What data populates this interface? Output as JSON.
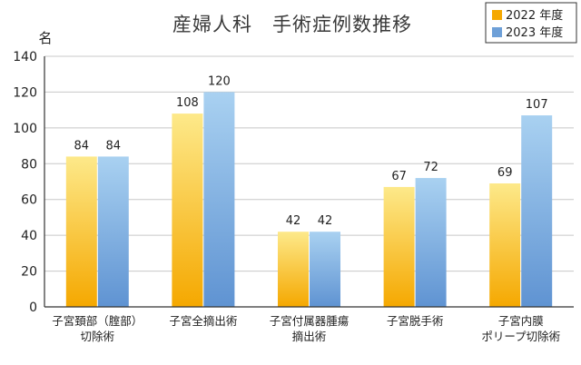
{
  "chart_data": {
    "type": "bar",
    "title": "産婦人科　手術症例数推移",
    "ylabel": "名",
    "ylim": [
      0,
      140
    ],
    "yticks": [
      0,
      20,
      40,
      60,
      80,
      100,
      120,
      140
    ],
    "grid": true,
    "legend_position": "top-right",
    "categories": [
      [
        "子宮頚部（腟部）",
        "切除術"
      ],
      [
        "子宮全摘出術"
      ],
      [
        "子宮付属器腫瘍",
        "摘出術"
      ],
      [
        "子宮脱手術"
      ],
      [
        "子宮内膜",
        "ポリープ切除術"
      ]
    ],
    "series": [
      {
        "name": "2022 年度",
        "values": [
          84,
          108,
          42,
          67,
          69
        ],
        "color": "#f5a800"
      },
      {
        "name": "2023 年度",
        "values": [
          84,
          120,
          42,
          72,
          107
        ],
        "color": "#6ea0d8"
      }
    ]
  }
}
